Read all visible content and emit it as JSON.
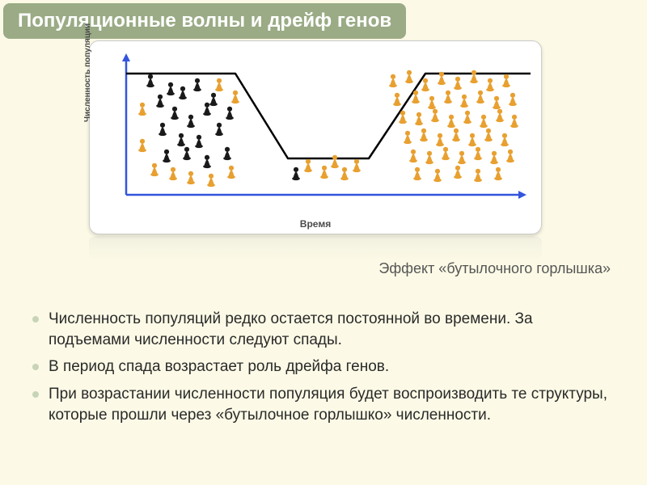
{
  "header": {
    "title": "Популяционные волны и дрейф генов"
  },
  "chart": {
    "type": "line",
    "background_color": "#ffffff",
    "border_color": "#cccccc",
    "axis_color": "#3355dd",
    "curve_color": "#000000",
    "curve_width": 2.5,
    "arrow_size": 8,
    "y_axis_label": "Численность популяции",
    "x_axis_label": "Время",
    "xlim": [
      0,
      500
    ],
    "ylim": [
      0,
      180
    ],
    "curve_points": [
      [
        0,
        20
      ],
      [
        135,
        20
      ],
      [
        200,
        125
      ],
      [
        300,
        125
      ],
      [
        370,
        20
      ],
      [
        500,
        20
      ]
    ],
    "pawns_left_black": [
      [
        30,
        35
      ],
      [
        55,
        45
      ],
      [
        42,
        60
      ],
      [
        70,
        50
      ],
      [
        88,
        40
      ],
      [
        60,
        75
      ],
      [
        80,
        85
      ],
      [
        100,
        70
      ],
      [
        45,
        95
      ],
      [
        68,
        108
      ],
      [
        90,
        110
      ],
      [
        115,
        95
      ],
      [
        108,
        58
      ],
      [
        128,
        75
      ],
      [
        75,
        125
      ],
      [
        50,
        128
      ],
      [
        100,
        135
      ],
      [
        125,
        125
      ]
    ],
    "pawns_left_orange": [
      [
        35,
        145
      ],
      [
        58,
        150
      ],
      [
        80,
        155
      ],
      [
        105,
        158
      ],
      [
        130,
        148
      ],
      [
        115,
        40
      ],
      [
        135,
        55
      ],
      [
        20,
        70
      ],
      [
        20,
        115
      ]
    ],
    "pawns_middle_orange": [
      [
        225,
        140
      ],
      [
        245,
        148
      ],
      [
        258,
        135
      ],
      [
        270,
        150
      ],
      [
        285,
        140
      ]
    ],
    "pawns_middle_black": [
      [
        210,
        150
      ]
    ],
    "pawns_right_orange": [
      [
        330,
        35
      ],
      [
        350,
        30
      ],
      [
        370,
        40
      ],
      [
        390,
        32
      ],
      [
        410,
        38
      ],
      [
        430,
        30
      ],
      [
        450,
        40
      ],
      [
        470,
        35
      ],
      [
        335,
        58
      ],
      [
        358,
        55
      ],
      [
        378,
        62
      ],
      [
        398,
        55
      ],
      [
        418,
        60
      ],
      [
        438,
        55
      ],
      [
        458,
        62
      ],
      [
        478,
        58
      ],
      [
        342,
        80
      ],
      [
        362,
        82
      ],
      [
        382,
        78
      ],
      [
        402,
        85
      ],
      [
        422,
        80
      ],
      [
        442,
        85
      ],
      [
        462,
        78
      ],
      [
        480,
        85
      ],
      [
        348,
        105
      ],
      [
        368,
        102
      ],
      [
        388,
        108
      ],
      [
        408,
        102
      ],
      [
        428,
        108
      ],
      [
        448,
        102
      ],
      [
        468,
        108
      ],
      [
        355,
        128
      ],
      [
        375,
        130
      ],
      [
        395,
        125
      ],
      [
        415,
        130
      ],
      [
        435,
        125
      ],
      [
        455,
        130
      ],
      [
        475,
        128
      ],
      [
        360,
        150
      ],
      [
        385,
        152
      ],
      [
        410,
        148
      ],
      [
        435,
        152
      ],
      [
        460,
        150
      ]
    ],
    "pawn_size": 14,
    "colors": {
      "black": "#1a1a1a",
      "orange": "#e8a030"
    }
  },
  "caption": {
    "text": "Эффект «бутылочного горлышка»"
  },
  "bullets": {
    "items": [
      "Численность популяций редко остается постоянной во времени. За подъемами численности следуют спады.",
      "В период спада возрастает роль дрейфа генов.",
      "При возрастании численности популяция будет воспроизводить те структуры, которые прошли через «бутылочное горлышко» численности."
    ]
  }
}
